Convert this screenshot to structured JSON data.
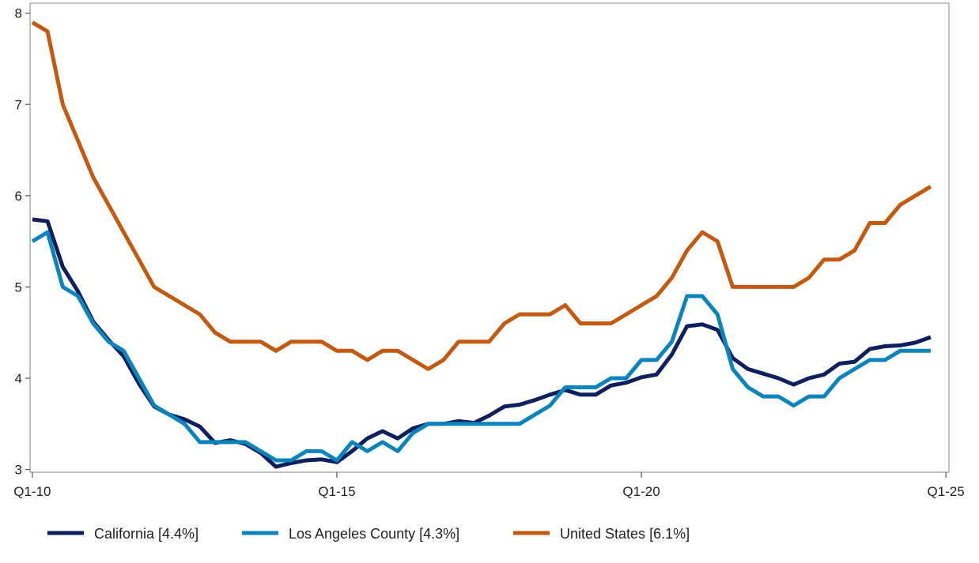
{
  "chart_data": {
    "type": "line",
    "title": "",
    "xlabel": "",
    "ylabel": "",
    "ylim": [
      2.97,
      8.11
    ],
    "xlim": [
      -0.15,
      60.2
    ],
    "grid": false,
    "legend_position": "bottom",
    "y_ticks": [
      {
        "value": 3,
        "label": "3"
      },
      {
        "value": 4,
        "label": "4"
      },
      {
        "value": 5,
        "label": "5"
      },
      {
        "value": 6,
        "label": "6"
      },
      {
        "value": 7,
        "label": "7"
      },
      {
        "value": 8,
        "label": "8"
      }
    ],
    "x_ticks": [
      {
        "value": 0,
        "label": "Q1-10"
      },
      {
        "value": 20,
        "label": "Q1-15"
      },
      {
        "value": 40,
        "label": "Q1-20"
      },
      {
        "value": 60,
        "label": "Q1-25"
      }
    ],
    "x": [
      "Q1-10",
      "Q2-10",
      "Q3-10",
      "Q4-10",
      "Q1-11",
      "Q2-11",
      "Q3-11",
      "Q4-11",
      "Q1-12",
      "Q2-12",
      "Q3-12",
      "Q4-12",
      "Q1-13",
      "Q2-13",
      "Q3-13",
      "Q4-13",
      "Q1-14",
      "Q2-14",
      "Q3-14",
      "Q4-14",
      "Q1-15",
      "Q2-15",
      "Q3-15",
      "Q4-15",
      "Q1-16",
      "Q2-16",
      "Q3-16",
      "Q4-16",
      "Q1-17",
      "Q2-17",
      "Q3-17",
      "Q4-17",
      "Q1-18",
      "Q2-18",
      "Q3-18",
      "Q4-18",
      "Q1-19",
      "Q2-19",
      "Q3-19",
      "Q4-19",
      "Q1-20",
      "Q2-20",
      "Q3-20",
      "Q4-20",
      "Q1-21",
      "Q2-21",
      "Q3-21",
      "Q4-21",
      "Q1-22",
      "Q2-22",
      "Q3-22",
      "Q4-22",
      "Q1-23",
      "Q2-23",
      "Q3-23",
      "Q4-23",
      "Q1-24",
      "Q2-24",
      "Q3-24",
      "Q4-24"
    ],
    "series": [
      {
        "name": "California [4.4%]",
        "color": "#0d1f5c",
        "values": [
          5.74,
          5.72,
          5.22,
          4.95,
          4.62,
          4.42,
          4.24,
          3.94,
          3.69,
          3.6,
          3.55,
          3.47,
          3.29,
          3.32,
          3.28,
          3.18,
          3.03,
          3.07,
          3.1,
          3.11,
          3.08,
          3.2,
          3.34,
          3.42,
          3.34,
          3.45,
          3.5,
          3.5,
          3.53,
          3.51,
          3.59,
          3.69,
          3.71,
          3.76,
          3.82,
          3.87,
          3.82,
          3.82,
          3.92,
          3.95,
          4.01,
          4.04,
          4.26,
          4.57,
          4.59,
          4.53,
          4.22,
          4.1,
          4.05,
          4.0,
          3.93,
          4.0,
          4.04,
          4.16,
          4.18,
          4.32,
          4.35,
          4.36,
          4.39,
          4.45
        ]
      },
      {
        "name": "Los Angeles County [4.3%]",
        "color": "#0b84bc",
        "values": [
          5.5,
          5.6,
          5.0,
          4.9,
          4.6,
          4.4,
          4.3,
          4.0,
          3.7,
          3.6,
          3.5,
          3.3,
          3.3,
          3.3,
          3.3,
          3.2,
          3.1,
          3.1,
          3.2,
          3.2,
          3.1,
          3.3,
          3.2,
          3.3,
          3.2,
          3.4,
          3.5,
          3.5,
          3.5,
          3.5,
          3.5,
          3.5,
          3.5,
          3.6,
          3.7,
          3.9,
          3.9,
          3.9,
          4.0,
          4.0,
          4.2,
          4.2,
          4.4,
          4.9,
          4.9,
          4.7,
          4.1,
          3.9,
          3.8,
          3.8,
          3.7,
          3.8,
          3.8,
          4.0,
          4.1,
          4.2,
          4.2,
          4.3,
          4.3,
          4.3
        ]
      },
      {
        "name": "United States [6.1%]",
        "color": "#c45a10",
        "values": [
          7.9,
          7.8,
          7.0,
          6.6,
          6.2,
          5.9,
          5.6,
          5.3,
          5.0,
          4.9,
          4.8,
          4.7,
          4.5,
          4.4,
          4.4,
          4.4,
          4.3,
          4.4,
          4.4,
          4.4,
          4.3,
          4.3,
          4.2,
          4.3,
          4.3,
          4.2,
          4.1,
          4.2,
          4.4,
          4.4,
          4.4,
          4.6,
          4.7,
          4.7,
          4.7,
          4.8,
          4.6,
          4.6,
          4.6,
          4.7,
          4.8,
          4.9,
          5.1,
          5.4,
          5.6,
          5.5,
          5.0,
          5.0,
          5.0,
          5.0,
          5.0,
          5.1,
          5.3,
          5.3,
          5.4,
          5.7,
          5.7,
          5.9,
          6.0,
          6.1
        ]
      }
    ]
  }
}
